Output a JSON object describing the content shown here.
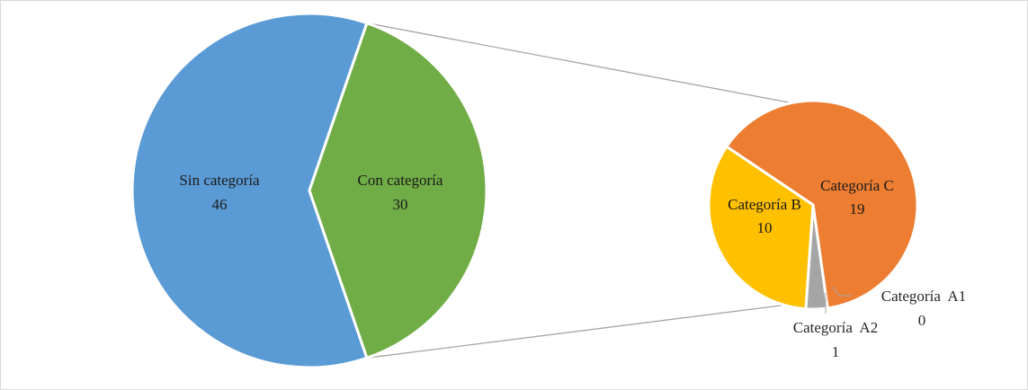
{
  "chart_data": {
    "type": "pie",
    "subtype": "pie-of-pie",
    "main_pie": {
      "categories": [
        "Sin categoría",
        "Con categoría"
      ],
      "values": [
        46,
        30
      ],
      "colors": [
        "#5b9bd5",
        "#70ad47"
      ]
    },
    "secondary_pie": {
      "categories": [
        "Categoría C",
        "Categoría A1",
        "Categoría A2",
        "Categoría B"
      ],
      "values": [
        19,
        0,
        1,
        10
      ],
      "colors": [
        "#ed7d31",
        "#4472c4",
        "#a5a5a5",
        "#ffc000"
      ]
    },
    "labels": {
      "sin": {
        "name": "Sin categoría",
        "value": "46"
      },
      "con": {
        "name": "Con categoría",
        "value": "30"
      },
      "c": {
        "name": "Categoría C",
        "value": "19"
      },
      "b": {
        "name": "Categoría B",
        "value": "10"
      },
      "a1": {
        "name": "Categoría  A1",
        "value": "0"
      },
      "a2": {
        "name": "Categoría  A2",
        "value": "1"
      }
    },
    "title": "",
    "legend": "none"
  }
}
